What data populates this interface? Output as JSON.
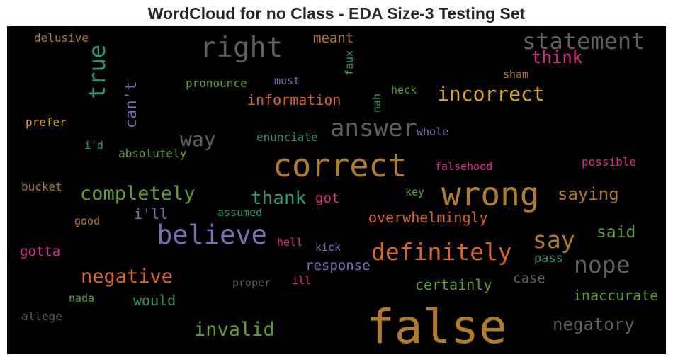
{
  "title": "WordCloud for no Class - EDA Size-3 Testing Set",
  "palette": {
    "background": "#000000",
    "gold": "#b07c25",
    "gray": "#5f5f5f",
    "orange": "#d9671d",
    "teal": "#2a9a70",
    "green": "#5fa12a",
    "purple": "#7670b2",
    "pink": "#e0298a",
    "yellow": "#e0a41c"
  },
  "words": [
    "false",
    "wrong",
    "correct",
    "believe",
    "right",
    "statement",
    "true",
    "answer",
    "definitely",
    "nope",
    "incorrect",
    "completely",
    "negative",
    "invalid",
    "say",
    "negatory",
    "thank",
    "think",
    "can't",
    "way",
    "saying",
    "said",
    "inaccurate",
    "certainly",
    "overwhelmingly",
    "information",
    "response",
    "would",
    "i'll",
    "meant",
    "gotta",
    "got",
    "case",
    "delusive",
    "pronounce",
    "faux",
    "must",
    "sham",
    "heck",
    "nah",
    "prefer",
    "whole",
    "enunciate",
    "i'd",
    "absolutely",
    "falsehood",
    "possible",
    "bucket",
    "key",
    "assumed",
    "good",
    "hell",
    "kick",
    "pass",
    "proper",
    "ill",
    "nada",
    "allege"
  ]
}
